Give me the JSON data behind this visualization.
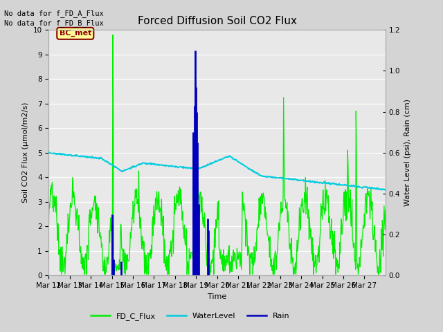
{
  "title": "Forced Diffusion Soil CO2 Flux",
  "xlabel": "Time",
  "ylabel_left": "Soil CO2 Flux (μmol/m2/s)",
  "ylabel_right": "Water Level (psi), Rain (cm)",
  "nodata_text1": "No data for f_FD_A_Flux",
  "nodata_text2": "No data for f_FD_B_Flux",
  "bc_label": "BC_met",
  "ylim_left": [
    0.0,
    10.0
  ],
  "ylim_right": [
    0.0,
    1.2
  ],
  "x_tick_labels": [
    "Mar 12",
    "Mar 13",
    "Mar 14",
    "Mar 15",
    "Mar 16",
    "Mar 17",
    "Mar 18",
    "Mar 19",
    "Mar 20",
    "Mar 21",
    "Mar 22",
    "Mar 23",
    "Mar 24",
    "Mar 25",
    "Mar 26",
    "Mar 27"
  ],
  "legend_entries": [
    "FD_C_Flux",
    "WaterLevel",
    "Rain"
  ],
  "green_color": "#00ee00",
  "cyan_color": "#00ccdd",
  "blue_color": "#0000bb",
  "fig_facecolor": "#d4d4d4",
  "axes_facecolor": "#e8e8e8",
  "grid_color": "#ffffff",
  "title_fontsize": 11,
  "label_fontsize": 8,
  "tick_fontsize": 7.5
}
